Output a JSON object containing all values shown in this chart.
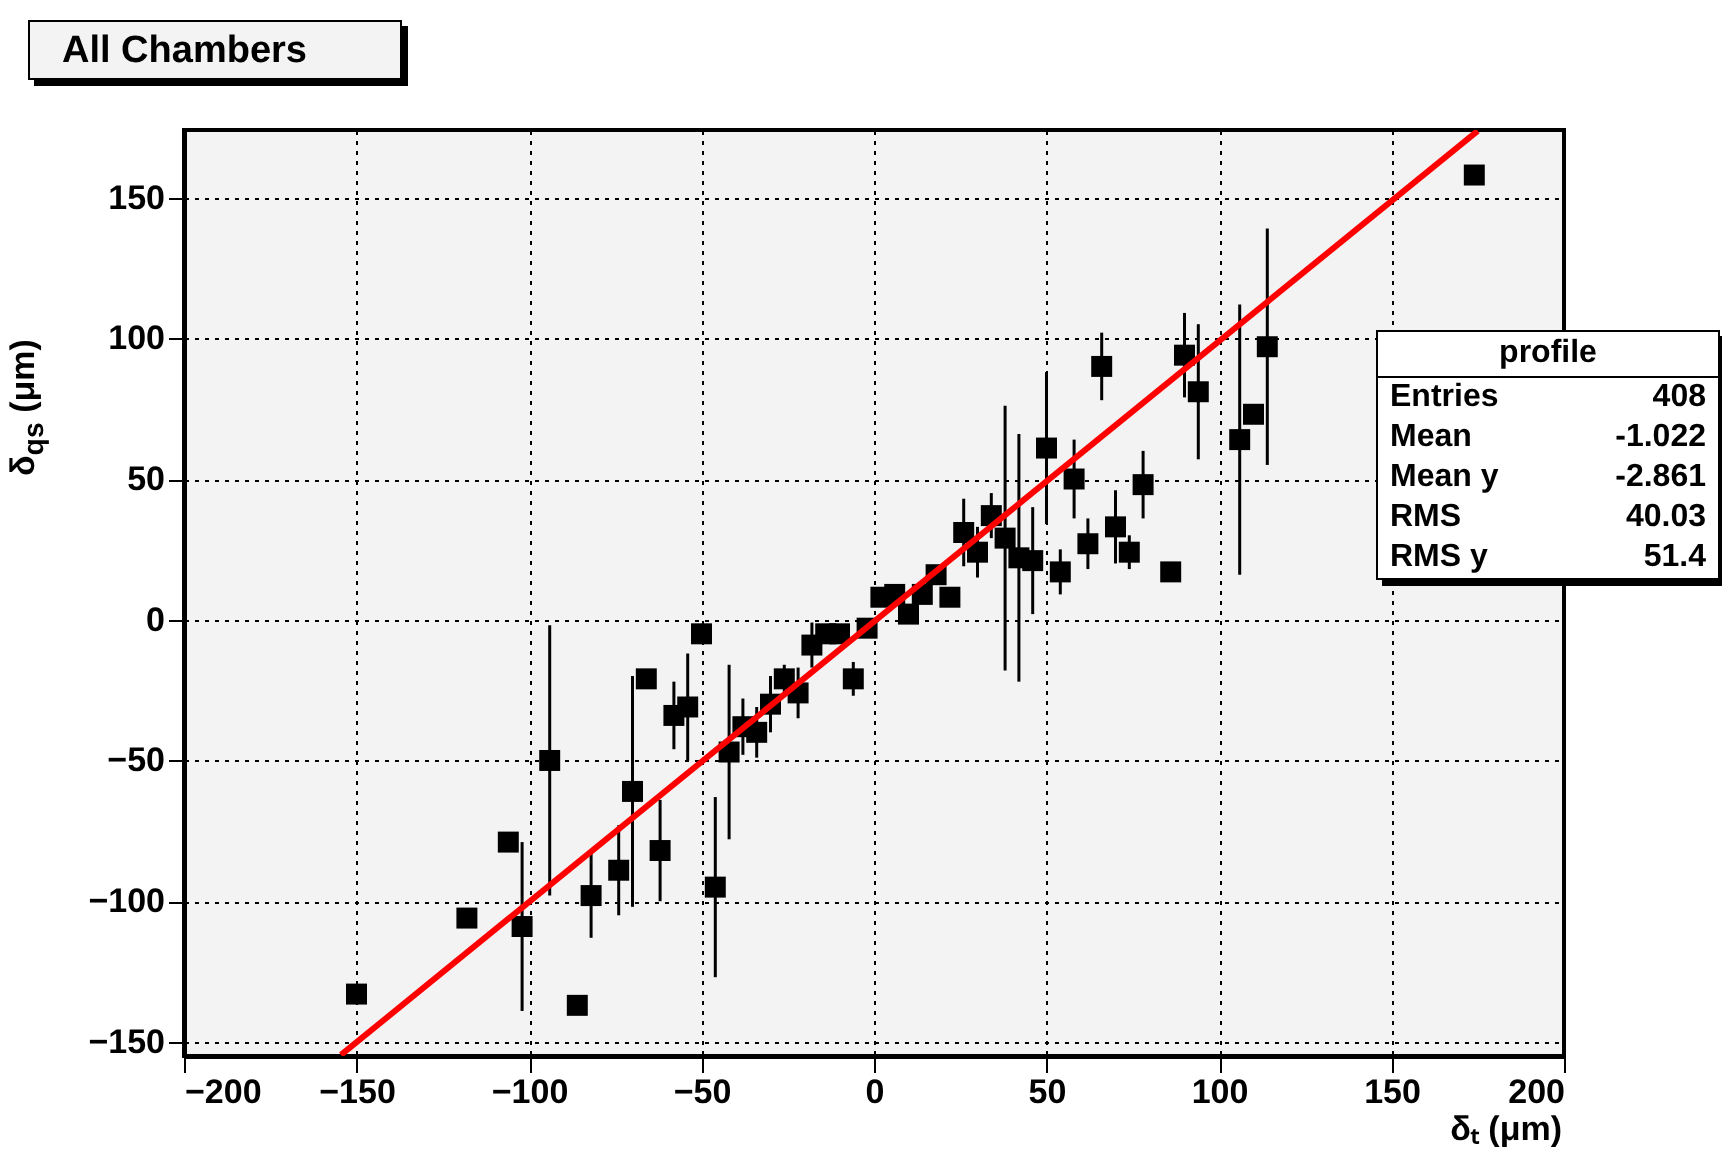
{
  "chart_data": {
    "type": "scatter",
    "title": "All Chambers",
    "xlabel": "δₜ (μm)",
    "ylabel": "δ$_{qs}$ (μm)",
    "xlim": [
      -200,
      200
    ],
    "ylim": [
      -155,
      174
    ],
    "xticks": [
      -200,
      -150,
      -100,
      -50,
      0,
      50,
      100,
      150,
      200
    ],
    "yticks": [
      -150,
      -100,
      -50,
      0,
      50,
      100,
      150
    ],
    "grid": true,
    "annotations": [
      "profile",
      "Entries",
      "408",
      "Mean",
      "-1.022",
      "Mean y",
      "-2.861",
      "RMS",
      "40.03",
      "RMS y",
      "51.4"
    ],
    "series": [
      {
        "color": "#000000",
        "marker": "square",
        "x": [
          -150,
          -118,
          -106,
          -102,
          -94,
          -86,
          -82,
          -74,
          -70,
          -66,
          -62,
          -58,
          -54,
          -50,
          -46,
          -42,
          -38,
          -34,
          -30,
          -26,
          -22,
          -18,
          -14,
          -10,
          -6,
          -2,
          2,
          6,
          10,
          14,
          18,
          22,
          26,
          30,
          34,
          38,
          42,
          46,
          50,
          54,
          58,
          62,
          66,
          70,
          74,
          78,
          86,
          90,
          94,
          106,
          110,
          114,
          174
        ],
        "values": [
          -133,
          -106,
          -79,
          -109,
          -50,
          -137,
          -98,
          -89,
          -61,
          -21,
          -82,
          -34,
          -31,
          -5,
          -95,
          -47,
          -38,
          -40,
          -30,
          -21,
          -26,
          -9,
          -5,
          -5,
          -21,
          -3,
          8,
          9,
          2,
          9,
          16,
          8,
          31,
          24,
          37,
          29,
          22,
          21,
          61,
          17,
          50,
          27,
          90,
          33,
          24,
          48,
          17,
          94,
          81,
          64,
          73,
          97,
          158
        ],
        "errors": [
          null,
          null,
          null,
          30,
          48,
          null,
          15,
          16,
          41,
          null,
          18,
          12,
          19,
          null,
          32,
          31,
          10,
          9,
          10,
          5,
          9,
          8,
          null,
          null,
          6,
          null,
          null,
          null,
          null,
          null,
          null,
          null,
          12,
          9,
          8,
          47,
          44,
          19,
          27,
          8,
          14,
          9,
          12,
          13,
          6,
          12,
          null,
          15,
          24,
          48,
          null,
          42,
          null
        ]
      },
      {
        "type": "line",
        "color": "#ff0000",
        "marker": "none",
        "x": [
          -154.5,
          175
        ],
        "values": [
          -154.6,
          173.7
        ]
      }
    ]
  }
}
